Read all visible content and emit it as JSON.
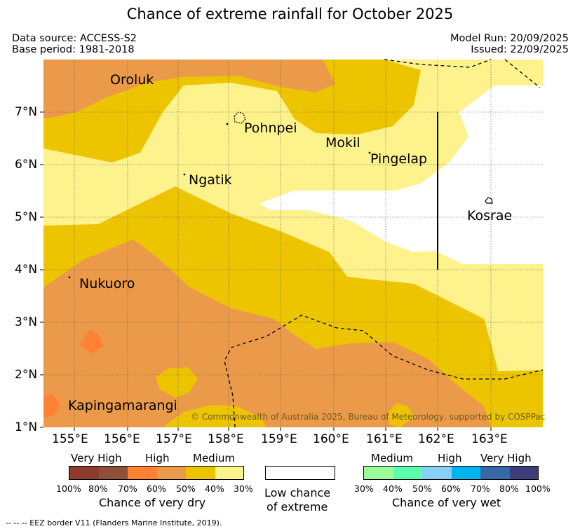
{
  "title": "Chance of extreme rainfall for October 2025",
  "meta": {
    "data_source": "Data source: ACCESS-S2",
    "base_period": "Base period: 1981-2018",
    "model_run": "Model Run: 20/09/2025",
    "issued": "Issued: 22/09/2025"
  },
  "map": {
    "x_ticks": [
      "155°E",
      "156°E",
      "157°E",
      "158°E",
      "159°E",
      "160°E",
      "161°E",
      "162°E",
      "163°E"
    ],
    "y_ticks": [
      "7°N",
      "6°N",
      "5°N",
      "4°N",
      "3°N",
      "2°N",
      "1°N"
    ],
    "x_range": [
      154.5,
      164.0
    ],
    "y_range": [
      1.0,
      8.0
    ],
    "places": {
      "oroluk": "Oroluk",
      "pohnpei": "Pohnpei",
      "mokil": "Mokil",
      "pingelap": "Pingelap",
      "ngatik": "Ngatik",
      "kosrae": "Kosrae",
      "nukuoro": "Nukuoro",
      "kapingamarangi": "Kapingamarangi"
    },
    "copyright": "© Commonwealth of Australia 2025, Bureau of Meteorology, supported by COSPPac"
  },
  "legend": {
    "dry": {
      "category_labels": [
        "Very High",
        "High",
        "Medium"
      ],
      "colors": [
        "#8c3b2c",
        "#8f4f3b",
        "#fe8231",
        "#eb9a49",
        "#ecc500",
        "#fdf28c"
      ],
      "ticks": [
        "100%",
        "80%",
        "70%",
        "60%",
        "50%",
        "40%",
        "30%"
      ],
      "caption": "Chance of very dry"
    },
    "low": {
      "caption_line1": "Low chance",
      "caption_line2": "of extreme"
    },
    "wet": {
      "category_labels": [
        "Medium",
        "High",
        "Very High"
      ],
      "colors": [
        "#9afe9a",
        "#5bfeaa",
        "#89cff8",
        "#00b4f0",
        "#3668a8",
        "#3c3e7b"
      ],
      "ticks": [
        "30%",
        "40%",
        "50%",
        "60%",
        "70%",
        "80%",
        "100%"
      ],
      "caption": "Chance of very wet"
    }
  },
  "footnote": "-- -- -- EEZ border V11 (Flanders Marine Institute, 2019)."
}
